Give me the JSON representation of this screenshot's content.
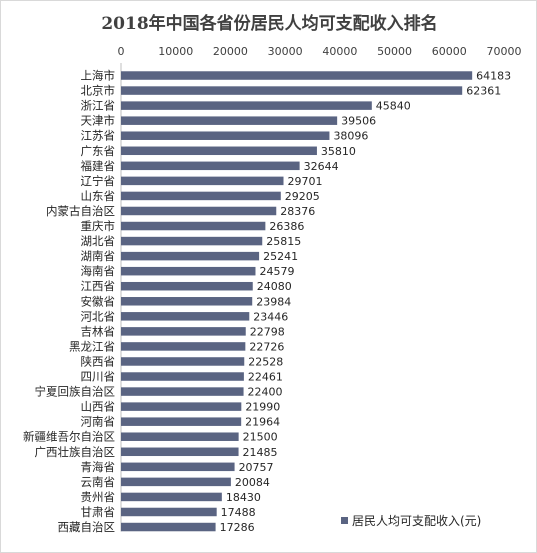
{
  "chart_data": {
    "type": "bar",
    "orientation": "horizontal",
    "title": "2018年中国各省份居民人均可支配收入排名",
    "xlabel": "",
    "ylabel": "",
    "xlim": [
      0,
      70000
    ],
    "x_ticks": [
      "0",
      "10000",
      "20000",
      "30000",
      "40000",
      "50000",
      "60000",
      "70000"
    ],
    "x_axis_position": "top",
    "grid": false,
    "legend_position": "bottom-right",
    "bar_color": "#5a6482",
    "categories": [
      "上海市",
      "北京市",
      "浙江省",
      "天津市",
      "江苏省",
      "广东省",
      "福建省",
      "辽宁省",
      "山东省",
      "内蒙古自治区",
      "重庆市",
      "湖北省",
      "湖南省",
      "海南省",
      "江西省",
      "安徽省",
      "河北省",
      "吉林省",
      "黑龙江省",
      "陕西省",
      "四川省",
      "宁夏回族自治区",
      "山西省",
      "河南省",
      "新疆维吾尔自治区",
      "广西壮族自治区",
      "青海省",
      "云南省",
      "贵州省",
      "甘肃省",
      "西藏自治区"
    ],
    "series": [
      {
        "name": "居民人均可支配收入(元)",
        "values": [
          64183,
          62361,
          45840,
          39506,
          38096,
          35810,
          32644,
          29701,
          29205,
          28376,
          26386,
          25815,
          25241,
          24579,
          24080,
          23984,
          23446,
          22798,
          22726,
          22528,
          22461,
          22400,
          21990,
          21964,
          21500,
          21485,
          20757,
          20084,
          18430,
          17488,
          17286
        ]
      }
    ]
  }
}
